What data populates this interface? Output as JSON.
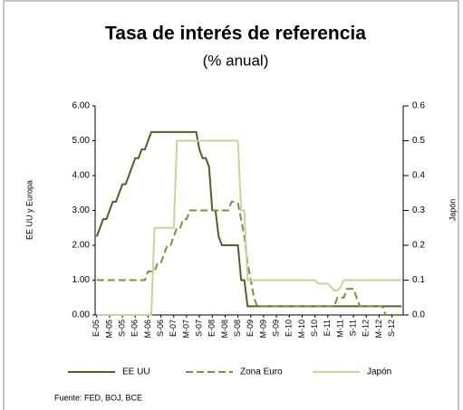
{
  "chart_data": {
    "type": "line",
    "title": "Tasa de interés de referencia",
    "subtitle": "(% anual)",
    "y_label": "EE UU y Europa",
    "y2_label": "Japón",
    "source": "Fuente: FED, BOJ, BCE",
    "categories": [
      "E-05",
      null,
      null,
      null,
      "M-05",
      null,
      null,
      null,
      "S-05",
      null,
      null,
      null,
      "E-06",
      null,
      null,
      null,
      "M-06",
      null,
      null,
      null,
      "S-06",
      null,
      null,
      null,
      "E-07",
      null,
      null,
      null,
      "M-07",
      null,
      null,
      null,
      "S-07",
      null,
      null,
      null,
      "E-08",
      null,
      null,
      null,
      "M-08",
      null,
      null,
      null,
      "S-08",
      null,
      null,
      null,
      "E-09",
      null,
      null,
      null,
      "M-09",
      null,
      null,
      null,
      "S-09",
      null,
      null,
      null,
      "E-10",
      null,
      null,
      null,
      "M-10",
      null,
      null,
      null,
      "S-10",
      null,
      null,
      null,
      "E-11",
      null,
      null,
      null,
      "M-11",
      null,
      null,
      null,
      "S-11",
      null,
      null,
      null,
      "E-12",
      null,
      null,
      null,
      "M-12",
      null,
      null,
      null,
      "S-12",
      null,
      null,
      null
    ],
    "series": [
      {
        "name": "EE UU",
        "color": "#4f6228",
        "dash": false,
        "values": [
          2.25,
          2.5,
          2.75,
          2.75,
          3.0,
          3.25,
          3.25,
          3.5,
          3.75,
          3.75,
          4.0,
          4.25,
          4.5,
          4.5,
          4.75,
          4.75,
          5.0,
          5.25,
          5.25,
          5.25,
          5.25,
          5.25,
          5.25,
          5.25,
          5.25,
          5.25,
          5.25,
          5.25,
          5.25,
          5.25,
          5.25,
          5.25,
          4.75,
          4.5,
          4.5,
          4.25,
          3.0,
          3.0,
          2.25,
          2.0,
          2.0,
          2.0,
          2.0,
          2.0,
          2.0,
          1.0,
          1.0,
          0.25,
          0.25,
          0.25,
          0.25,
          0.25,
          0.25,
          0.25,
          0.25,
          0.25,
          0.25,
          0.25,
          0.25,
          0.25,
          0.25,
          0.25,
          0.25,
          0.25,
          0.25,
          0.25,
          0.25,
          0.25,
          0.25,
          0.25,
          0.25,
          0.25,
          0.25,
          0.25,
          0.25,
          0.25,
          0.25,
          0.25,
          0.25,
          0.25,
          0.25,
          0.25,
          0.25,
          0.25,
          0.25,
          0.25,
          0.25,
          0.25,
          0.25,
          0.25,
          0.25,
          0.25,
          0.25,
          0.25,
          0.25,
          0.25
        ]
      },
      {
        "name": "Zona Euro",
        "color": "#77933c",
        "dash": true,
        "values": [
          1.0,
          1.0,
          1.0,
          1.0,
          1.0,
          1.0,
          1.0,
          1.0,
          1.0,
          1.0,
          1.0,
          1.0,
          1.0,
          1.0,
          1.0,
          1.0,
          1.25,
          1.25,
          1.25,
          1.5,
          1.5,
          1.75,
          2.0,
          2.0,
          2.25,
          2.5,
          2.5,
          2.75,
          2.75,
          3.0,
          3.0,
          3.0,
          3.0,
          3.0,
          3.0,
          3.0,
          3.0,
          3.0,
          3.0,
          3.0,
          3.0,
          3.0,
          3.25,
          3.25,
          3.2,
          2.75,
          2.25,
          1.5,
          1.0,
          0.5,
          0.25,
          0.25,
          0.25,
          0.25,
          0.25,
          0.25,
          0.25,
          0.25,
          0.25,
          0.25,
          0.25,
          0.25,
          0.25,
          0.25,
          0.25,
          0.25,
          0.25,
          0.25,
          0.25,
          0.25,
          0.25,
          0.25,
          0.25,
          0.25,
          0.25,
          0.5,
          0.5,
          0.5,
          0.75,
          0.75,
          0.75,
          0.5,
          0.25,
          0.25,
          0.25,
          0.25,
          0.25,
          0.25,
          0.25,
          0.25,
          0,
          0,
          0,
          0,
          0,
          0
        ]
      },
      {
        "name": "Japón",
        "color": "#c3d69b",
        "dash": false,
        "axis": "y2",
        "values": [
          0,
          0,
          0,
          0,
          0,
          0,
          0,
          0,
          0,
          0,
          0,
          0,
          0,
          0,
          0,
          0,
          0,
          0,
          0.25,
          0.25,
          0.25,
          0.25,
          0.25,
          0.25,
          0.25,
          0.5,
          0.5,
          0.5,
          0.5,
          0.5,
          0.5,
          0.5,
          0.5,
          0.5,
          0.5,
          0.5,
          0.5,
          0.5,
          0.5,
          0.5,
          0.5,
          0.5,
          0.5,
          0.5,
          0.5,
          0.3,
          0.3,
          0.1,
          0.1,
          0.1,
          0.1,
          0.1,
          0.1,
          0.1,
          0.1,
          0.1,
          0.1,
          0.1,
          0.1,
          0.1,
          0.1,
          0.1,
          0.1,
          0.1,
          0.1,
          0.1,
          0.1,
          0.1,
          0.1,
          0.09,
          0.09,
          0.09,
          0.09,
          0.08,
          0.07,
          0.07,
          0.08,
          0.1,
          0.1,
          0.1,
          0.1,
          0.1,
          0.1,
          0.1,
          0.1,
          0.1,
          0.1,
          0.1,
          0.1,
          0.1,
          0.1,
          0.1,
          0.1,
          0.1,
          0.1,
          0.1
        ]
      }
    ],
    "ylim": [
      0,
      6
    ],
    "yticks": [
      {
        "value": 0,
        "label": "0.00"
      },
      {
        "value": 1,
        "label": "1.00"
      },
      {
        "value": 2,
        "label": "2.00"
      },
      {
        "value": 3,
        "label": "3.00"
      },
      {
        "value": 4,
        "label": "4.00"
      },
      {
        "value": 5,
        "label": "5.00"
      },
      {
        "value": 6,
        "label": "6.00"
      }
    ],
    "y2lim": [
      0,
      0.6
    ],
    "y2ticks": [
      {
        "value": 0,
        "label": "0.0"
      },
      0.1,
      0.2,
      0.3,
      0.4,
      0.5,
      0.6
    ]
  }
}
